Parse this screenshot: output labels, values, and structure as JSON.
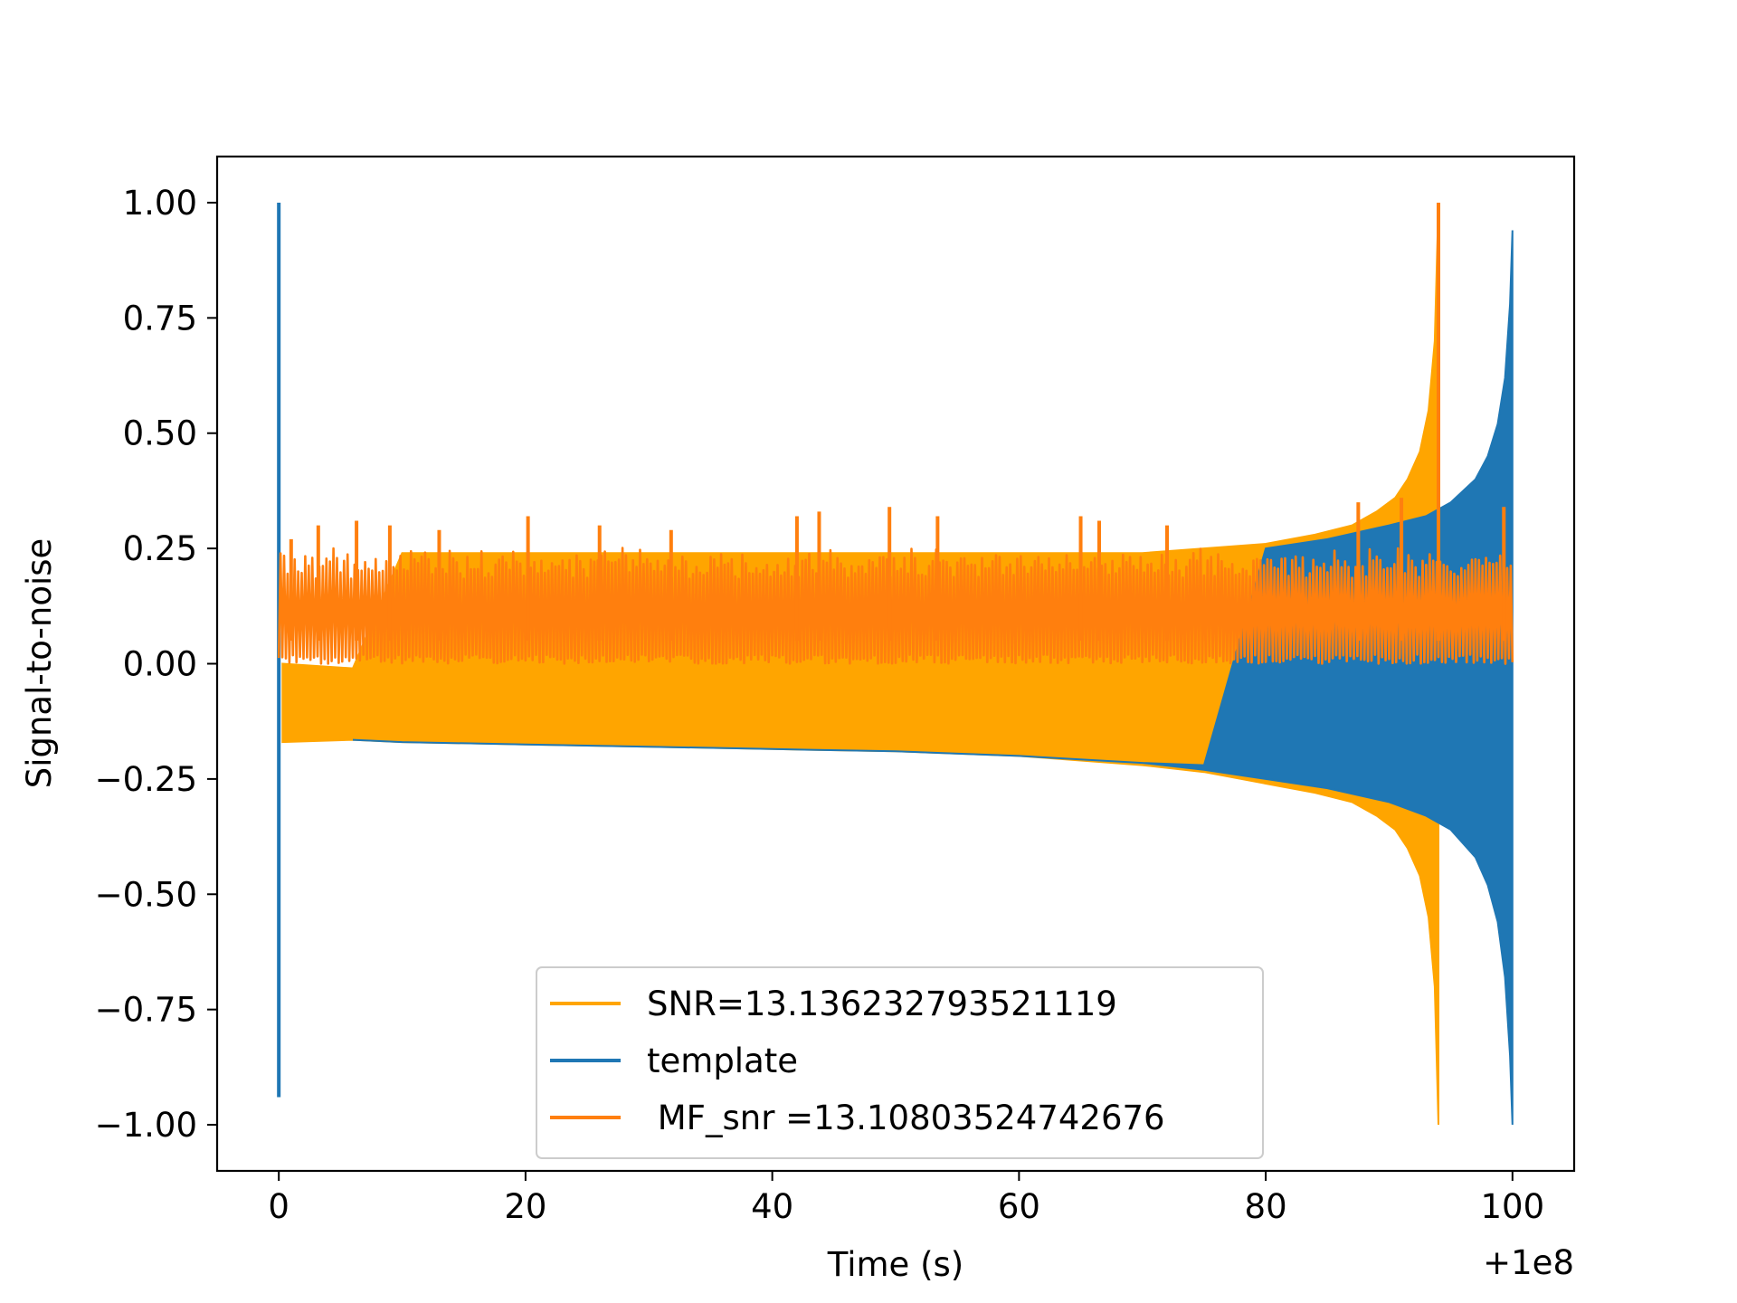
{
  "chart_data": {
    "type": "line",
    "title": "",
    "xlabel": "Time (s)",
    "ylabel": "Signal-to-noise",
    "x_offset_label": "+1e8",
    "xlim": [
      -5,
      105
    ],
    "ylim": [
      -1.1,
      1.1
    ],
    "xticks": [
      0,
      20,
      40,
      60,
      80,
      100
    ],
    "xtick_labels": [
      "0",
      "20",
      "40",
      "60",
      "80",
      "100"
    ],
    "yticks": [
      -1.0,
      -0.75,
      -0.5,
      -0.25,
      0.0,
      0.25,
      0.5,
      0.75,
      1.0
    ],
    "ytick_labels": [
      "−1.00",
      "−0.75",
      "−0.50",
      "−0.25",
      "0.00",
      "0.25",
      "0.50",
      "0.75",
      "1.00"
    ],
    "grid": false,
    "legend_position": "bottom-center",
    "series": [
      {
        "name": "SNR=13.136232793521119",
        "color": "#ffa500",
        "kind": "chirp",
        "envelope_x": [
          0.3,
          6,
          10,
          20,
          30,
          40,
          50,
          60,
          65,
          70,
          75,
          80,
          84,
          87,
          89,
          90.5,
          91.5,
          92.5,
          93.2,
          93.7,
          94.0
        ],
        "envelope_upper": [
          0.0,
          -0.01,
          0.24,
          0.24,
          0.24,
          0.24,
          0.24,
          0.24,
          0.24,
          0.24,
          0.25,
          0.26,
          0.28,
          0.3,
          0.33,
          0.36,
          0.4,
          0.46,
          0.55,
          0.7,
          1.0
        ],
        "envelope_lower": [
          -0.17,
          -0.165,
          -0.17,
          -0.175,
          -0.18,
          -0.185,
          -0.19,
          -0.2,
          -0.21,
          -0.22,
          -0.235,
          -0.26,
          -0.28,
          -0.3,
          -0.33,
          -0.36,
          -0.4,
          -0.46,
          -0.55,
          -0.7,
          -1.0
        ]
      },
      {
        "name": "template",
        "color": "#1f77b4",
        "kind": "chirp",
        "envelope_x": [
          6,
          10,
          20,
          30,
          40,
          50,
          60,
          70,
          75,
          80,
          85,
          90,
          93,
          95,
          97,
          98,
          98.8,
          99.4,
          99.8,
          100.0
        ],
        "envelope_upper": [
          -0.165,
          -0.17,
          -0.175,
          -0.18,
          -0.185,
          -0.19,
          -0.2,
          -0.215,
          -0.22,
          0.25,
          0.27,
          0.3,
          0.32,
          0.35,
          0.4,
          0.45,
          0.52,
          0.62,
          0.78,
          0.94
        ],
        "envelope_lower": [
          -0.165,
          -0.17,
          -0.175,
          -0.18,
          -0.185,
          -0.19,
          -0.2,
          -0.215,
          -0.23,
          -0.25,
          -0.27,
          -0.3,
          -0.33,
          -0.36,
          -0.42,
          -0.48,
          -0.56,
          -0.68,
          -0.85,
          -1.0
        ],
        "spike": {
          "x": 0,
          "ymin": -0.94,
          "ymax": 1.0
        }
      },
      {
        "name": " MF_snr =13.10803524742676",
        "color": "#ff7f0e",
        "kind": "noise",
        "x_range": [
          0,
          100
        ],
        "band_min": 0.0,
        "band_max": 0.23,
        "peaks": [
          [
            1.0,
            0.27
          ],
          [
            3.2,
            0.3
          ],
          [
            6.3,
            0.31
          ],
          [
            9.0,
            0.3
          ],
          [
            13.0,
            0.29
          ],
          [
            20.2,
            0.32
          ],
          [
            26.0,
            0.3
          ],
          [
            31.8,
            0.29
          ],
          [
            42.0,
            0.32
          ],
          [
            43.8,
            0.33
          ],
          [
            49.5,
            0.34
          ],
          [
            53.4,
            0.32
          ],
          [
            65.0,
            0.32
          ],
          [
            66.5,
            0.31
          ],
          [
            72.0,
            0.3
          ],
          [
            87.5,
            0.35
          ],
          [
            91.0,
            0.36
          ],
          [
            94.0,
            1.0
          ],
          [
            99.3,
            0.34
          ]
        ]
      }
    ]
  }
}
